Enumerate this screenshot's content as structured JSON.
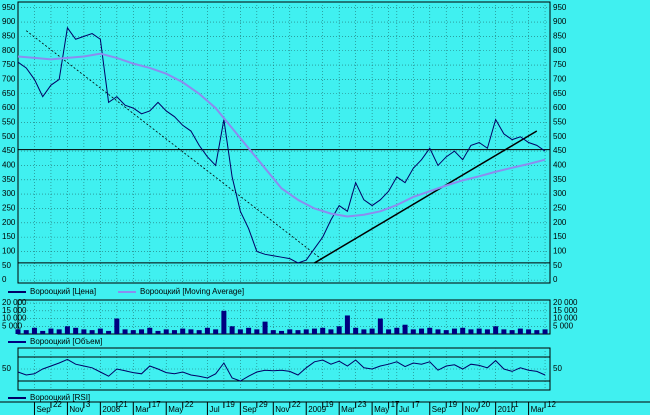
{
  "time_axis": {
    "xlim": [
      0,
      64.6
    ],
    "ticks": [
      {
        "value": 2,
        "label": "Sep"
      },
      {
        "value": 6,
        "label": "Nov"
      },
      {
        "value": 10,
        "label": "2008"
      },
      {
        "value": 14,
        "label": "Mar"
      },
      {
        "value": 18,
        "label": "May"
      },
      {
        "value": 23,
        "label": "Jul"
      },
      {
        "value": 27,
        "label": "Sep"
      },
      {
        "value": 31,
        "label": "Nov"
      },
      {
        "value": 35,
        "label": "2009"
      },
      {
        "value": 39,
        "label": "Mar"
      },
      {
        "value": 43,
        "label": "May"
      },
      {
        "value": 46,
        "label": "Jul"
      },
      {
        "value": 50,
        "label": "Sep"
      },
      {
        "value": 54,
        "label": "Nov"
      },
      {
        "value": 58,
        "label": "2010"
      },
      {
        "value": 62,
        "label": "Mar"
      }
    ],
    "day_ticks": [
      {
        "value": 4,
        "label": "22"
      },
      {
        "value": 8,
        "label": "3"
      },
      {
        "value": 12,
        "label": "21"
      },
      {
        "value": 16,
        "label": "17"
      },
      {
        "value": 20,
        "label": "22"
      },
      {
        "value": 25,
        "label": "19"
      },
      {
        "value": 29,
        "label": "29"
      },
      {
        "value": 33,
        "label": "22"
      },
      {
        "value": 37,
        "label": "19"
      },
      {
        "value": 41,
        "label": "23"
      },
      {
        "value": 45,
        "label": "17"
      },
      {
        "value": 48,
        "label": "7"
      },
      {
        "value": 52,
        "label": "19"
      },
      {
        "value": 56,
        "label": "20"
      },
      {
        "value": 60,
        "label": "1"
      },
      {
        "value": 64,
        "label": "12"
      }
    ]
  },
  "chart_data": [
    {
      "type": "line",
      "ylim": [
        -10,
        970
      ],
      "yticks": [
        0,
        50,
        100,
        150,
        200,
        250,
        300,
        350,
        400,
        450,
        500,
        550,
        600,
        650,
        700,
        750,
        800,
        850,
        900,
        950
      ],
      "grid": true,
      "series": [
        {
          "name": "Ворооцкий [Цена]",
          "color": "#000066",
          "width": 1,
          "values": [
            760,
            740,
            700,
            640,
            680,
            700,
            880,
            840,
            850,
            860,
            840,
            620,
            640,
            610,
            600,
            580,
            590,
            620,
            590,
            570,
            540,
            520,
            470,
            430,
            400,
            560,
            360,
            240,
            180,
            100,
            90,
            85,
            80,
            75,
            60,
            70,
            110,
            150,
            210,
            260,
            240,
            340,
            280,
            260,
            280,
            310,
            360,
            340,
            390,
            420,
            460,
            400,
            430,
            450,
            420,
            470,
            480,
            460,
            560,
            510,
            490,
            500,
            480,
            470,
            450
          ]
        },
        {
          "name": "Ворооцкий [Moving Average]",
          "color": "#8c8cf0",
          "width": 2,
          "x": [
            0,
            2,
            4,
            6,
            8,
            10,
            12,
            14,
            16,
            18,
            20,
            22,
            24,
            26,
            28,
            30,
            32,
            34,
            36,
            38,
            40,
            42,
            44,
            46,
            48,
            50,
            52,
            54,
            56,
            58,
            60,
            62,
            64
          ],
          "values": [
            780,
            775,
            770,
            775,
            780,
            790,
            775,
            755,
            740,
            720,
            690,
            650,
            600,
            530,
            460,
            390,
            320,
            280,
            250,
            232,
            222,
            228,
            240,
            262,
            290,
            310,
            330,
            348,
            362,
            378,
            392,
            405,
            420
          ]
        }
      ],
      "levels": [
        455,
        60
      ],
      "trendlines": [
        {
          "x": [
            1,
            37
          ],
          "values": [
            870,
            70
          ],
          "dashed": true
        },
        {
          "x": [
            36,
            63
          ],
          "values": [
            60,
            520
          ],
          "dashed": false
        }
      ]
    },
    {
      "type": "bar",
      "ylim": [
        0,
        22000
      ],
      "yticks": [
        {
          "value": 5000,
          "label": "5 000"
        },
        {
          "value": 10000,
          "label": "10 000"
        },
        {
          "value": 15000,
          "label": "15 000"
        },
        {
          "value": 20000,
          "label": "20 000"
        }
      ],
      "grid": true,
      "series": [
        {
          "name": "Ворооцкий [Объем]",
          "color": "#000080",
          "values": [
            3000,
            2500,
            4000,
            2000,
            3500,
            3000,
            5000,
            4000,
            3000,
            2500,
            3500,
            2000,
            10000,
            3000,
            2500,
            3000,
            4000,
            2000,
            3000,
            2500,
            3500,
            3000,
            2500,
            4000,
            3000,
            15000,
            5000,
            3000,
            4000,
            3000,
            8000,
            2500,
            2000,
            3000,
            2500,
            3000,
            3500,
            4000,
            3000,
            5000,
            12000,
            4000,
            3000,
            3500,
            10000,
            3000,
            4000,
            6000,
            3000,
            3500,
            4000,
            3000,
            2500,
            3500,
            4000,
            3000,
            3500,
            3000,
            5000,
            3000,
            2500,
            3500,
            3000,
            2500,
            3000
          ]
        }
      ]
    },
    {
      "type": "line",
      "ylim": [
        15,
        85
      ],
      "yticks": [
        50
      ],
      "grid": true,
      "levels": [
        30,
        70
      ],
      "series": [
        {
          "name": "Ворооцкий [RSI]",
          "color": "#000066",
          "width": 1,
          "values": [
            45,
            40,
            42,
            50,
            55,
            60,
            66,
            58,
            55,
            52,
            45,
            38,
            50,
            47,
            44,
            42,
            55,
            50,
            44,
            42,
            45,
            40,
            38,
            35,
            42,
            60,
            35,
            30,
            38,
            45,
            48,
            47,
            48,
            46,
            40,
            52,
            62,
            65,
            58,
            63,
            55,
            65,
            52,
            50,
            55,
            58,
            62,
            54,
            60,
            58,
            62,
            48,
            55,
            57,
            50,
            58,
            56,
            52,
            64,
            50,
            46,
            52,
            48,
            46,
            40
          ]
        }
      ]
    }
  ]
}
